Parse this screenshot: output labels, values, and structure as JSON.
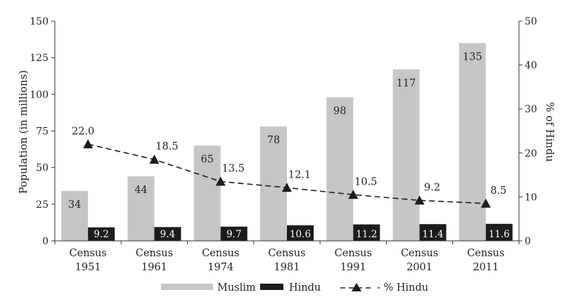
{
  "chart_data": {
    "type": "bar+line",
    "categories": [
      [
        "Census",
        "1951"
      ],
      [
        "Census",
        "1961"
      ],
      [
        "Census",
        "1974"
      ],
      [
        "Census",
        "1981"
      ],
      [
        "Census",
        "1991"
      ],
      [
        "Census",
        "2001"
      ],
      [
        "Census",
        "2011"
      ]
    ],
    "series": [
      {
        "name": "Muslim",
        "axis": "left",
        "kind": "bar",
        "color": "#c6c6c6",
        "values": [
          34,
          44,
          65,
          78,
          98,
          117,
          135
        ],
        "labels": [
          "34",
          "44",
          "65",
          "78",
          "98",
          "117",
          "135"
        ]
      },
      {
        "name": "Hindu",
        "axis": "left",
        "kind": "bar",
        "color": "#1c1c1c",
        "values": [
          9.2,
          9.4,
          9.7,
          10.6,
          11.2,
          11.4,
          11.6
        ],
        "labels": [
          "9.2",
          "9.4",
          "9.7",
          "10.6",
          "11.2",
          "11.4",
          "11.6"
        ]
      },
      {
        "name": "% Hindu",
        "axis": "right",
        "kind": "line",
        "color": "#1c1c1c",
        "values": [
          22.0,
          18.5,
          13.5,
          12.1,
          10.5,
          9.2,
          8.5
        ],
        "labels": [
          "22.0",
          "18.5",
          "13.5",
          "12.1",
          "10.5",
          "9.2",
          "8.5"
        ]
      }
    ],
    "ylabel": "Population (in millions)",
    "y2label": "% of Hindu",
    "ylim": [
      0,
      150
    ],
    "y2lim": [
      0,
      50
    ],
    "yticks": [
      0,
      25,
      50,
      75,
      100,
      125,
      150
    ],
    "y2ticks": [
      0,
      10,
      20,
      30,
      40,
      50
    ],
    "legend": {
      "position": "bottom",
      "items": [
        {
          "label": "Muslim",
          "style": "bar-gray"
        },
        {
          "label": "Hindu",
          "style": "bar-black"
        },
        {
          "label": "- % Hindu",
          "style": "dashed-triangle"
        }
      ]
    }
  }
}
